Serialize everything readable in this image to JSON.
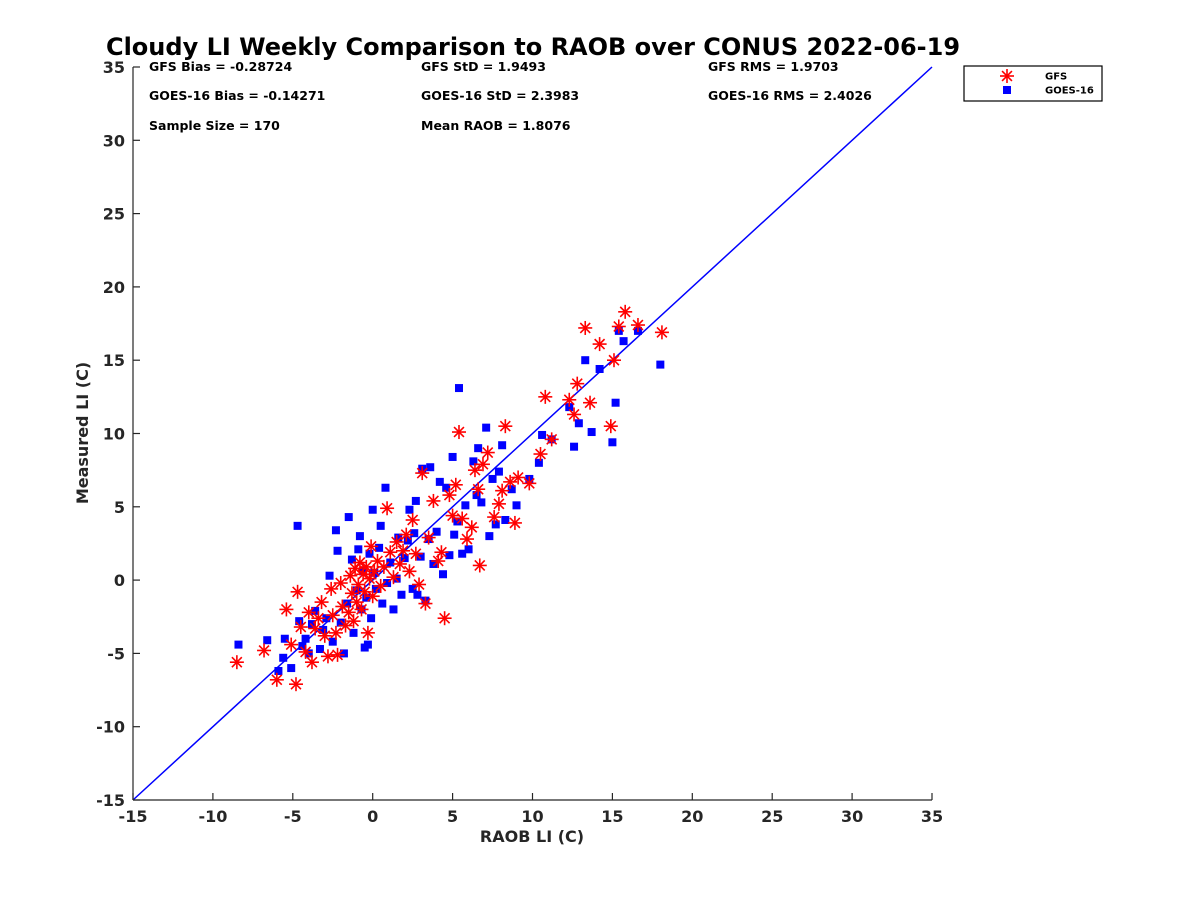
{
  "chart_data": {
    "type": "scatter",
    "title": "Cloudy LI Weekly Comparison to RAOB over CONUS 2022-06-19",
    "xlabel": "RAOB LI (C)",
    "ylabel": "Measured LI (C)",
    "xlim": [
      -15,
      35
    ],
    "ylim": [
      -15,
      35
    ],
    "xticks": [
      "-15",
      "-10",
      "-5",
      "0",
      "5",
      "10",
      "15",
      "20",
      "25",
      "30",
      "35"
    ],
    "yticks": [
      "-15",
      "-10",
      "-5",
      "0",
      "5",
      "10",
      "15",
      "20",
      "25",
      "30",
      "35"
    ],
    "grid": false,
    "legend_position": "outside top-right",
    "reference_line": {
      "x": [
        -15,
        35
      ],
      "y": [
        -15,
        35
      ],
      "color": "#0000ff"
    },
    "stats": [
      {
        "text": "GFS Bias = -0.28724"
      },
      {
        "text": "GFS StD = 1.9493"
      },
      {
        "text": "GFS RMS = 1.9703"
      },
      {
        "text": "GOES-16 Bias = -0.14271"
      },
      {
        "text": "GOES-16 StD = 2.3983"
      },
      {
        "text": "GOES-16 RMS = 2.4026"
      },
      {
        "text": "Sample Size = 170"
      },
      {
        "text": "Mean RAOB = 1.8076"
      }
    ],
    "series": [
      {
        "name": "GFS",
        "marker": "asterisk",
        "color": "#ff0000",
        "points": [
          [
            -8.5,
            -5.6
          ],
          [
            -6.8,
            -4.8
          ],
          [
            -6.0,
            -6.8
          ],
          [
            -5.4,
            -2.0
          ],
          [
            -5.1,
            -4.4
          ],
          [
            -4.8,
            -7.1
          ],
          [
            -4.7,
            -0.8
          ],
          [
            -4.5,
            -3.2
          ],
          [
            -4.2,
            -4.9
          ],
          [
            -4.0,
            -2.2
          ],
          [
            -3.8,
            -5.6
          ],
          [
            -3.6,
            -3.3
          ],
          [
            -3.4,
            -2.6
          ],
          [
            -3.2,
            -1.5
          ],
          [
            -3.0,
            -3.8
          ],
          [
            -2.8,
            -5.2
          ],
          [
            -2.6,
            -0.6
          ],
          [
            -2.5,
            -2.4
          ],
          [
            -2.3,
            -3.6
          ],
          [
            -2.2,
            -5.1
          ],
          [
            -2.0,
            -0.2
          ],
          [
            -1.9,
            -1.8
          ],
          [
            -1.7,
            -3.1
          ],
          [
            -1.5,
            -2.2
          ],
          [
            -1.4,
            0.3
          ],
          [
            -1.3,
            -0.9
          ],
          [
            -1.2,
            -2.8
          ],
          [
            -1.1,
            0.8
          ],
          [
            -1.0,
            -1.5
          ],
          [
            -0.9,
            -0.3
          ],
          [
            -0.8,
            1.2
          ],
          [
            -0.7,
            -2.0
          ],
          [
            -0.6,
            0.4
          ],
          [
            -0.5,
            -0.8
          ],
          [
            -0.4,
            0.9
          ],
          [
            -0.3,
            -3.6
          ],
          [
            -0.2,
            0.1
          ],
          [
            -0.1,
            2.3
          ],
          [
            0.0,
            -1.1
          ],
          [
            0.1,
            0.6
          ],
          [
            0.3,
            1.3
          ],
          [
            0.5,
            -0.4
          ],
          [
            0.7,
            0.9
          ],
          [
            0.9,
            4.9
          ],
          [
            1.1,
            1.9
          ],
          [
            1.3,
            0.2
          ],
          [
            1.5,
            2.6
          ],
          [
            1.7,
            1.1
          ],
          [
            1.9,
            2.0
          ],
          [
            2.1,
            3.1
          ],
          [
            2.3,
            0.6
          ],
          [
            2.5,
            4.1
          ],
          [
            2.7,
            1.8
          ],
          [
            2.9,
            -0.3
          ],
          [
            3.1,
            7.3
          ],
          [
            3.3,
            -1.6
          ],
          [
            3.5,
            2.9
          ],
          [
            3.8,
            5.4
          ],
          [
            4.1,
            1.3
          ],
          [
            4.3,
            1.9
          ],
          [
            4.5,
            -2.6
          ],
          [
            4.8,
            5.8
          ],
          [
            5.0,
            4.4
          ],
          [
            5.2,
            6.5
          ],
          [
            5.4,
            10.1
          ],
          [
            5.6,
            4.2
          ],
          [
            5.9,
            2.8
          ],
          [
            6.2,
            3.6
          ],
          [
            6.4,
            7.5
          ],
          [
            6.6,
            6.2
          ],
          [
            6.7,
            1.0
          ],
          [
            6.9,
            7.9
          ],
          [
            7.2,
            8.7
          ],
          [
            7.6,
            4.3
          ],
          [
            7.9,
            5.2
          ],
          [
            8.1,
            6.1
          ],
          [
            8.3,
            10.5
          ],
          [
            8.6,
            6.7
          ],
          [
            8.9,
            3.9
          ],
          [
            9.1,
            7.0
          ],
          [
            9.8,
            6.6
          ],
          [
            10.5,
            8.6
          ],
          [
            10.8,
            12.5
          ],
          [
            11.2,
            9.6
          ],
          [
            12.3,
            12.3
          ],
          [
            12.6,
            11.3
          ],
          [
            12.8,
            13.4
          ],
          [
            13.3,
            17.2
          ],
          [
            13.6,
            12.1
          ],
          [
            14.2,
            16.1
          ],
          [
            14.9,
            10.5
          ],
          [
            15.1,
            15.0
          ],
          [
            15.4,
            17.3
          ],
          [
            15.8,
            18.3
          ],
          [
            16.6,
            17.4
          ],
          [
            18.1,
            16.9
          ]
        ]
      },
      {
        "name": "GOES-16",
        "marker": "square",
        "color": "#0000ff",
        "points": [
          [
            -8.4,
            -4.4
          ],
          [
            -6.6,
            -4.1
          ],
          [
            -5.9,
            -6.2
          ],
          [
            -5.6,
            -5.3
          ],
          [
            -5.5,
            -4.0
          ],
          [
            -5.1,
            -6.0
          ],
          [
            -4.7,
            3.7
          ],
          [
            -4.6,
            -2.8
          ],
          [
            -4.4,
            -4.5
          ],
          [
            -4.2,
            -4.0
          ],
          [
            -4.0,
            -5.0
          ],
          [
            -3.8,
            -3.0
          ],
          [
            -3.6,
            -2.1
          ],
          [
            -3.3,
            -4.7
          ],
          [
            -3.1,
            -3.4
          ],
          [
            -2.9,
            -2.6
          ],
          [
            -2.7,
            0.3
          ],
          [
            -2.5,
            -4.2
          ],
          [
            -2.3,
            3.4
          ],
          [
            -2.2,
            2.0
          ],
          [
            -2.0,
            -2.9
          ],
          [
            -1.8,
            -5.0
          ],
          [
            -1.6,
            -1.6
          ],
          [
            -1.5,
            4.3
          ],
          [
            -1.3,
            1.4
          ],
          [
            -1.2,
            -3.6
          ],
          [
            -1.0,
            -0.7
          ],
          [
            -0.9,
            2.1
          ],
          [
            -0.8,
            3.0
          ],
          [
            -0.7,
            -2.0
          ],
          [
            -0.6,
            0.6
          ],
          [
            -0.5,
            -4.6
          ],
          [
            -0.4,
            -1.2
          ],
          [
            -0.3,
            -4.4
          ],
          [
            -0.2,
            1.8
          ],
          [
            -0.1,
            -2.6
          ],
          [
            0.0,
            4.8
          ],
          [
            0.1,
            0.5
          ],
          [
            0.2,
            -0.6
          ],
          [
            0.4,
            2.2
          ],
          [
            0.5,
            3.7
          ],
          [
            0.6,
            -1.6
          ],
          [
            0.8,
            6.3
          ],
          [
            0.9,
            -0.2
          ],
          [
            1.1,
            1.2
          ],
          [
            1.3,
            -2.0
          ],
          [
            1.5,
            0.1
          ],
          [
            1.6,
            2.9
          ],
          [
            1.8,
            -1.0
          ],
          [
            2.0,
            1.5
          ],
          [
            2.2,
            2.7
          ],
          [
            2.3,
            4.8
          ],
          [
            2.5,
            -0.6
          ],
          [
            2.6,
            3.2
          ],
          [
            2.7,
            5.4
          ],
          [
            2.8,
            -1.0
          ],
          [
            3.0,
            1.6
          ],
          [
            3.1,
            7.6
          ],
          [
            3.3,
            -1.4
          ],
          [
            3.5,
            2.8
          ],
          [
            3.6,
            7.7
          ],
          [
            3.8,
            1.1
          ],
          [
            4.0,
            3.3
          ],
          [
            4.2,
            6.7
          ],
          [
            4.4,
            0.4
          ],
          [
            4.6,
            6.3
          ],
          [
            4.8,
            1.7
          ],
          [
            5.0,
            8.4
          ],
          [
            5.1,
            3.1
          ],
          [
            5.3,
            4.0
          ],
          [
            5.4,
            13.1
          ],
          [
            5.6,
            1.8
          ],
          [
            5.8,
            5.1
          ],
          [
            6.0,
            2.1
          ],
          [
            6.3,
            8.1
          ],
          [
            6.5,
            5.8
          ],
          [
            6.6,
            9.0
          ],
          [
            6.8,
            5.3
          ],
          [
            7.1,
            10.4
          ],
          [
            7.3,
            3.0
          ],
          [
            7.5,
            6.9
          ],
          [
            7.7,
            3.8
          ],
          [
            7.9,
            7.4
          ],
          [
            8.1,
            9.2
          ],
          [
            8.3,
            4.1
          ],
          [
            8.7,
            6.2
          ],
          [
            9.0,
            5.1
          ],
          [
            9.8,
            6.9
          ],
          [
            10.4,
            8.0
          ],
          [
            10.6,
            9.9
          ],
          [
            11.2,
            9.6
          ],
          [
            12.3,
            11.8
          ],
          [
            12.6,
            9.1
          ],
          [
            12.9,
            10.7
          ],
          [
            13.3,
            15.0
          ],
          [
            13.7,
            10.1
          ],
          [
            14.2,
            14.4
          ],
          [
            15.0,
            9.4
          ],
          [
            15.2,
            12.1
          ],
          [
            15.4,
            17.0
          ],
          [
            15.7,
            16.3
          ],
          [
            16.6,
            17.0
          ],
          [
            18.0,
            14.7
          ]
        ]
      }
    ]
  }
}
